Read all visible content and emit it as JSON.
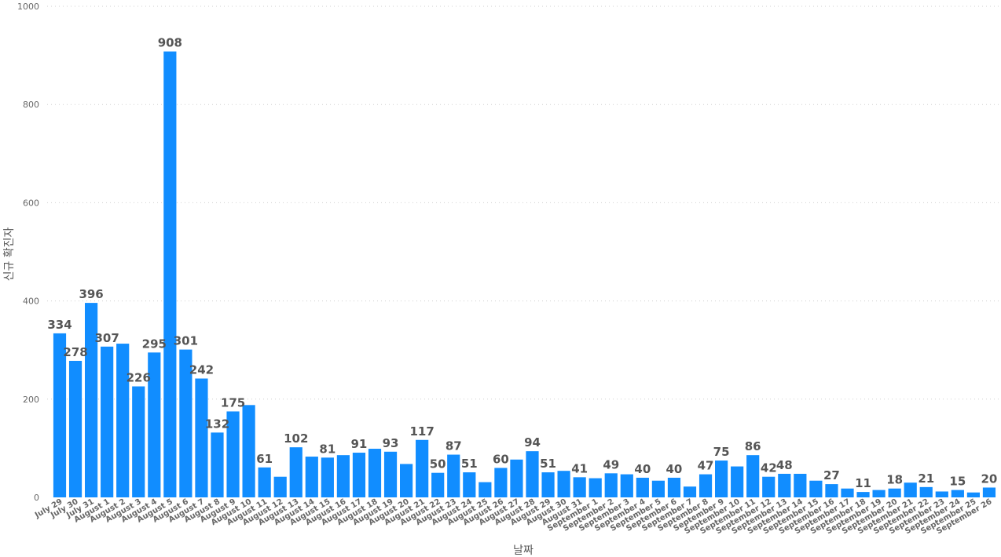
{
  "chart_data": {
    "type": "bar",
    "title": "",
    "xlabel": "날짜",
    "ylabel": "신규 확진자",
    "ylim": [
      0,
      1000
    ],
    "yticks": [
      "0",
      "200",
      "400",
      "600",
      "800",
      "1000"
    ],
    "grid": true,
    "bar_color": "#118DFF",
    "categories": [
      "July 29",
      "July 30",
      "July 31",
      "August 1",
      "August 2",
      "August 3",
      "August 4",
      "August 5",
      "August 6",
      "August 7",
      "August 8",
      "August 9",
      "August 10",
      "August 11",
      "August 12",
      "August 13",
      "August 14",
      "August 15",
      "August 16",
      "August 17",
      "August 18",
      "August 19",
      "August 20",
      "August 21",
      "August 22",
      "August 23",
      "August 24",
      "August 25",
      "August 26",
      "August 27",
      "August 28",
      "August 29",
      "August 30",
      "August 31",
      "September 1",
      "September 2",
      "September 3",
      "September 4",
      "September 5",
      "September 6",
      "September 7",
      "September 8",
      "September 9",
      "September 10",
      "September 11",
      "September 12",
      "September 13",
      "September 14",
      "September 15",
      "September 16",
      "September 17",
      "September 18",
      "September 19",
      "September 20",
      "September 21",
      "September 22",
      "September 23",
      "September 24",
      "September 25",
      "September 26"
    ],
    "values": [
      334,
      278,
      396,
      307,
      313,
      226,
      295,
      908,
      301,
      242,
      132,
      175,
      188,
      61,
      42,
      102,
      83,
      81,
      86,
      91,
      99,
      93,
      68,
      117,
      50,
      87,
      51,
      31,
      60,
      77,
      94,
      51,
      54,
      41,
      39,
      49,
      47,
      40,
      34,
      40,
      22,
      47,
      75,
      63,
      86,
      42,
      48,
      48,
      34,
      27,
      18,
      11,
      15,
      18,
      30,
      21,
      12,
      15,
      10,
      20
    ],
    "data_labels": [
      "334",
      "278",
      "396",
      "307",
      "",
      "226",
      "295",
      "908",
      "301",
      "242",
      "132",
      "175",
      "",
      "61",
      "",
      "102",
      "",
      "81",
      "",
      "91",
      "",
      "93",
      "",
      "117",
      "50",
      "87",
      "51",
      "",
      "60",
      "",
      "94",
      "51",
      "",
      "41",
      "",
      "49",
      "",
      "40",
      "",
      "40",
      "",
      "47",
      "75",
      "",
      "86",
      "42",
      "48",
      "",
      "",
      "27",
      "",
      "11",
      "",
      "18",
      "",
      "21",
      "",
      "15",
      "",
      "20"
    ]
  }
}
